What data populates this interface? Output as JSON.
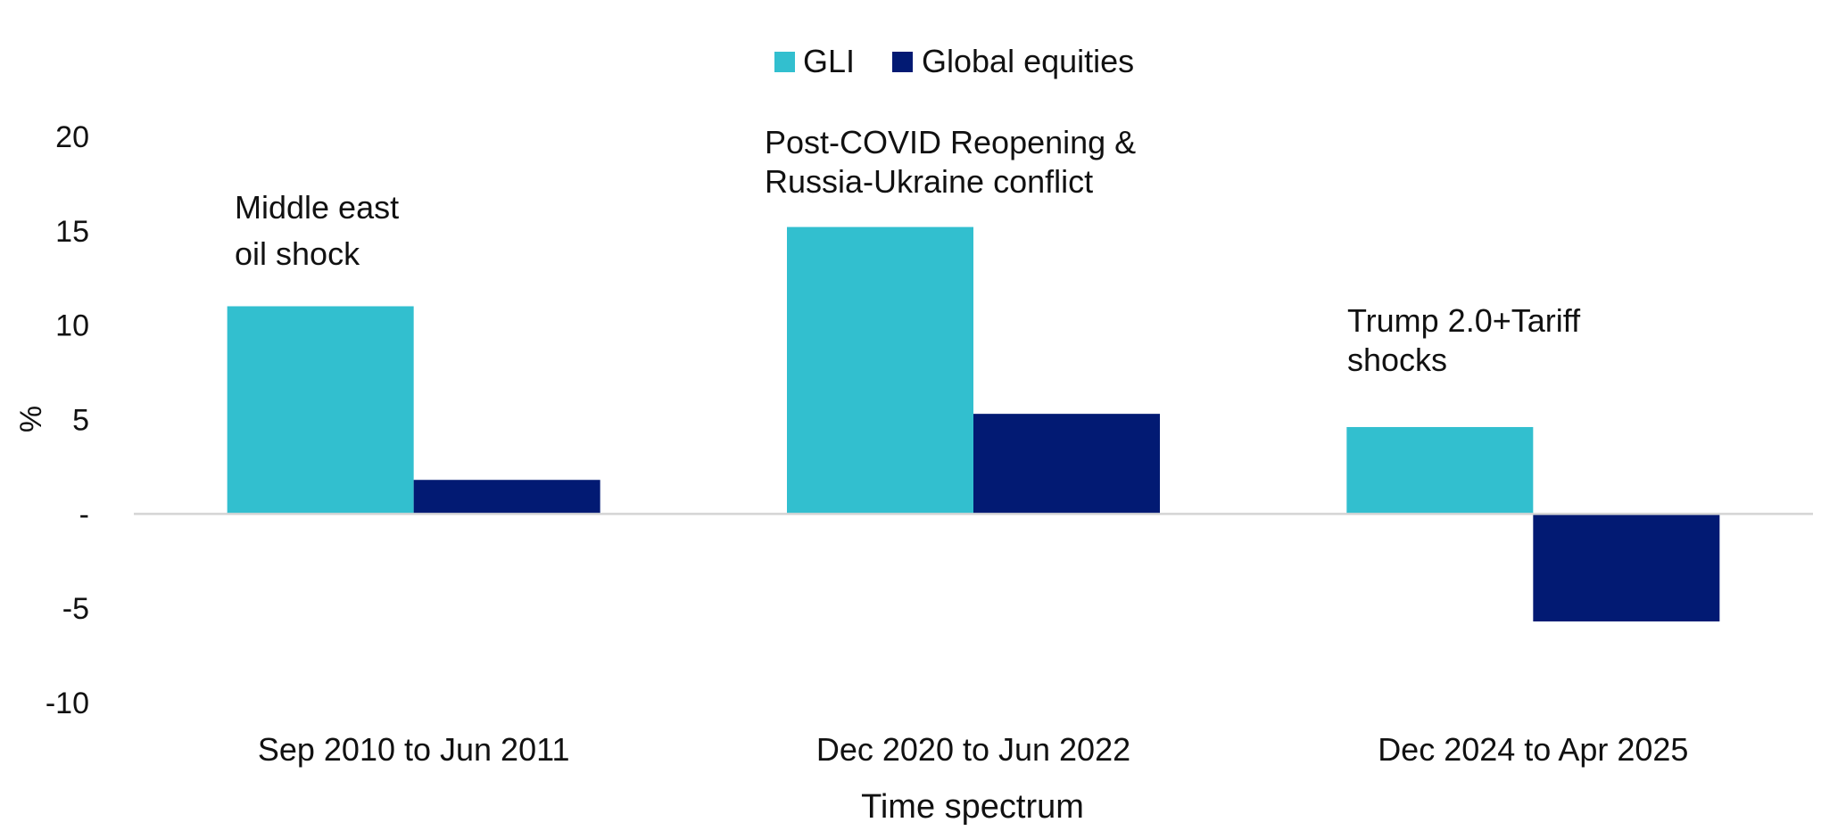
{
  "chart_data": {
    "type": "bar",
    "title": "",
    "xlabel": "Time spectrum",
    "ylabel": "%",
    "categories": [
      "Sep 2010 to Jun 2011",
      "Dec 2020 to Jun 2022",
      "Dec 2024 to Apr 2025"
    ],
    "series": [
      {
        "name": "GLI",
        "values": [
          11.0,
          15.2,
          4.6
        ],
        "color": "#32bfcf"
      },
      {
        "name": "Global equities",
        "values": [
          1.8,
          5.3,
          -5.7
        ],
        "color": "#021a73"
      }
    ],
    "ylim": [
      -10,
      20
    ],
    "yticks": [
      {
        "value": 20,
        "label": "20"
      },
      {
        "value": 15,
        "label": "15"
      },
      {
        "value": 10,
        "label": "10"
      },
      {
        "value": 5,
        "label": "5"
      },
      {
        "value": 0,
        "label": "-"
      },
      {
        "value": -5,
        "label": "-5"
      },
      {
        "value": -10,
        "label": "-10"
      }
    ],
    "grid": false,
    "legend": {
      "position": "top-center"
    },
    "annotations": [
      {
        "category_index": 0,
        "lines": [
          "Middle east",
          "oil shock"
        ]
      },
      {
        "category_index": 1,
        "lines": [
          "Post-COVID Reopening &",
          "Russia-Ukraine conflict"
        ]
      },
      {
        "category_index": 2,
        "lines": [
          "Trump 2.0+Tariff",
          "shocks"
        ]
      }
    ]
  }
}
